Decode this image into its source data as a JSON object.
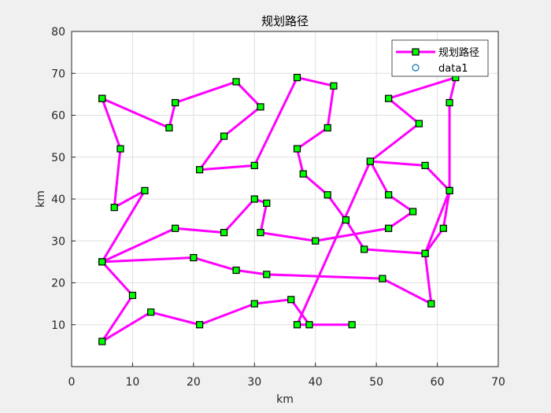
{
  "chart_data": {
    "type": "line",
    "title": "规划路径",
    "xlabel": "km",
    "ylabel": "km",
    "xlim": [
      0,
      70
    ],
    "ylim": [
      0,
      80
    ],
    "xticks": [
      0,
      10,
      20,
      30,
      40,
      50,
      60,
      70
    ],
    "yticks": [
      10,
      20,
      30,
      40,
      50,
      60,
      70,
      80
    ],
    "grid": true,
    "legend_position": "top-right",
    "series": [
      {
        "name": "规划路径",
        "color": "#ff00ff",
        "marker_color": "#00ff00",
        "marker": "square",
        "x": [
          5,
          16,
          17,
          27,
          31,
          25,
          21,
          30,
          37,
          43,
          42,
          37,
          38,
          42,
          45,
          48,
          58,
          61,
          62,
          58,
          49,
          57,
          52,
          63,
          62,
          62,
          58,
          59,
          51,
          32,
          27,
          20,
          5,
          17,
          25,
          30,
          32,
          31,
          40,
          52,
          56,
          52,
          49,
          37,
          46,
          39,
          36,
          30,
          21,
          13,
          5,
          10,
          5,
          12,
          7,
          8,
          5
        ],
        "y": [
          64,
          57,
          63,
          68,
          62,
          55,
          47,
          48,
          69,
          67,
          57,
          52,
          46,
          41,
          35,
          28,
          27,
          33,
          42,
          48,
          49,
          58,
          64,
          69,
          63,
          42,
          27,
          15,
          21,
          22,
          23,
          26,
          25,
          33,
          32,
          40,
          39,
          32,
          30,
          33,
          37,
          41,
          49,
          10,
          10,
          10,
          16,
          15,
          10,
          13,
          6,
          17,
          25,
          42,
          38,
          52,
          64
        ]
      },
      {
        "name": "data1",
        "color": "#0072bd",
        "marker": "circle",
        "x": [],
        "y": []
      }
    ]
  }
}
